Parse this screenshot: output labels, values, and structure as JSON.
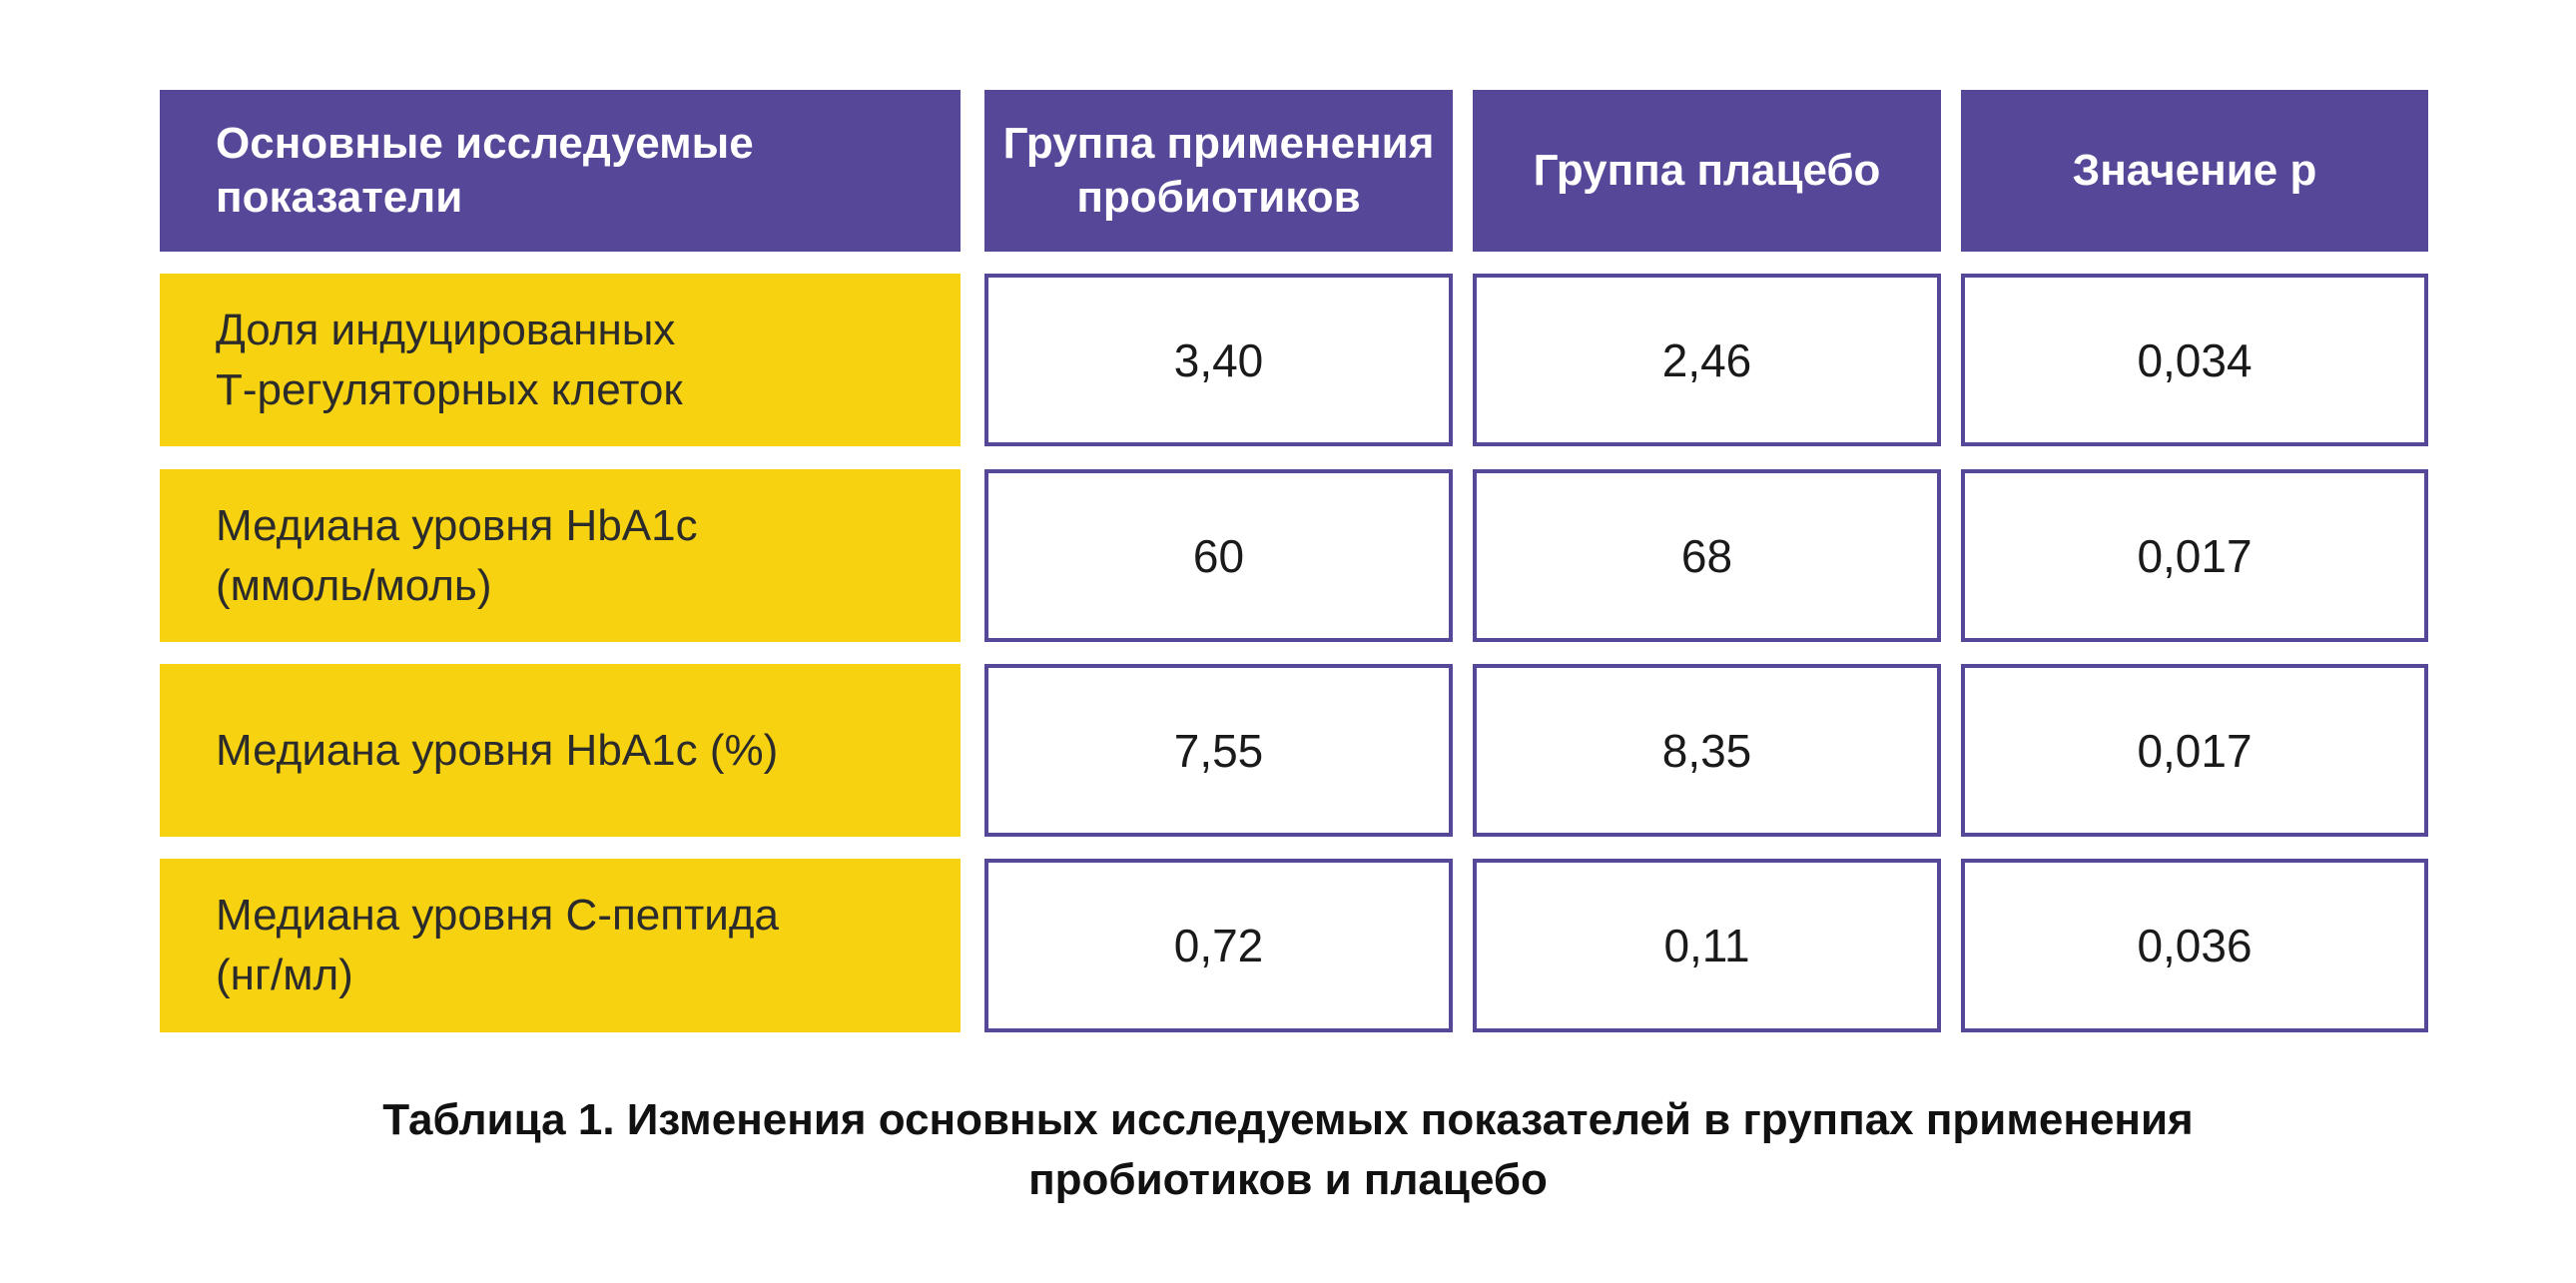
{
  "table": {
    "headers": [
      "Основные исследуемые\nпоказатели",
      "Группа применения\nпробиотиков",
      "Группа плацебо",
      "Значение p"
    ],
    "rows": [
      {
        "label": "Доля индуцированных\nТ-регуляторных клеток",
        "probiotic": "3,40",
        "placebo": "2,46",
        "p_value": "0,034"
      },
      {
        "label": "Медиана уровня HbA1c\n(ммоль/моль)",
        "probiotic": "60",
        "placebo": "68",
        "p_value": "0,017"
      },
      {
        "label": "Медиана уровня HbA1c (%)",
        "probiotic": "7,55",
        "placebo": "8,35",
        "p_value": "0,017"
      },
      {
        "label": "Медиана уровня С-пептида\n(нг/мл)",
        "probiotic": "0,72",
        "placebo": "0,11",
        "p_value": "0,036"
      }
    ]
  },
  "caption": "Таблица 1. Изменения основных исследуемых показателей в группах применения\nпробиотиков и плацебо",
  "colors": {
    "header_bg": "#574798",
    "label_bg": "#f6d211",
    "border": "#574798"
  }
}
